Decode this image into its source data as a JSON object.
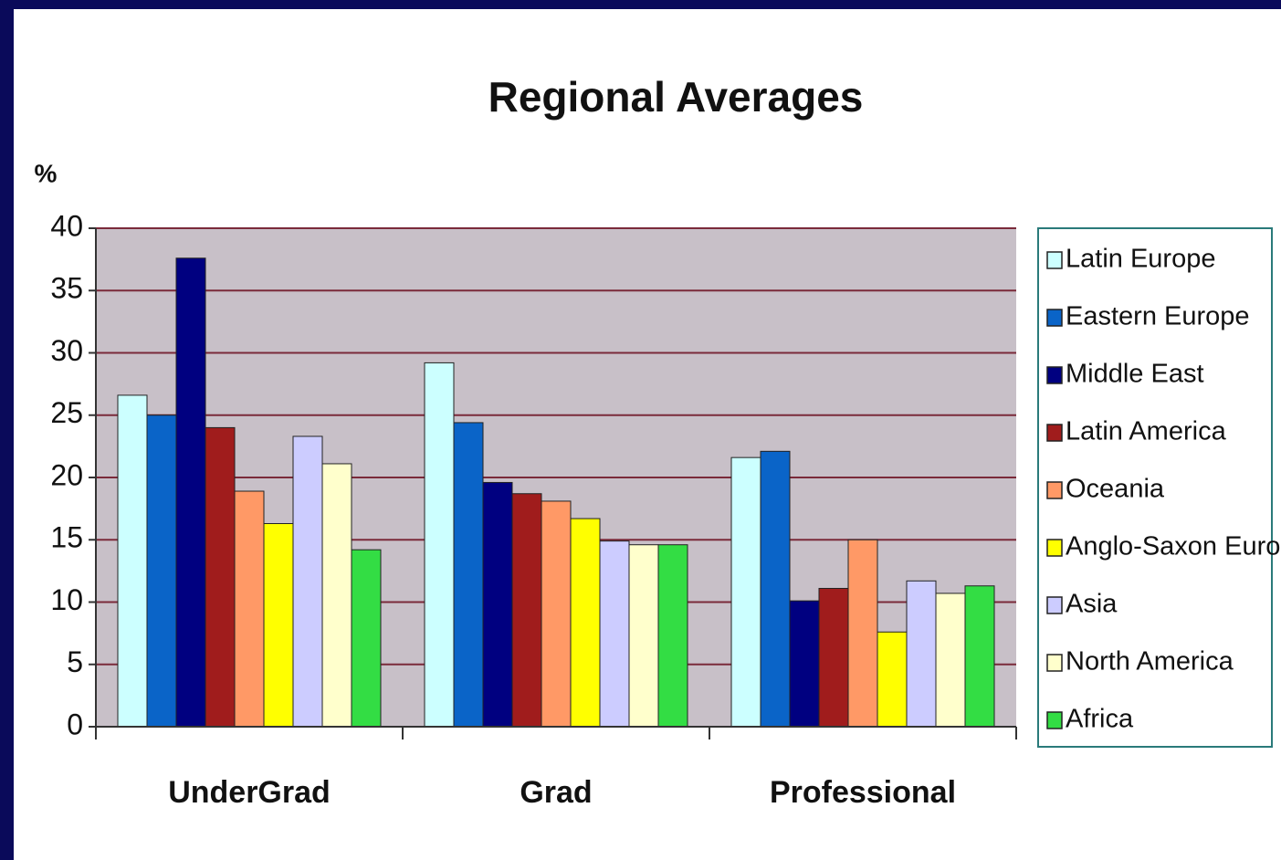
{
  "chart_data": {
    "type": "bar",
    "title": "Regional Averages",
    "y_label": "%",
    "categories": [
      "UnderGrad",
      "Grad",
      "Professional"
    ],
    "series": [
      {
        "name": "Latin Europe",
        "color": "#ccffff",
        "values": [
          26.6,
          29.2,
          21.6
        ]
      },
      {
        "name": "Eastern Europe",
        "color": "#0a64c8",
        "values": [
          25,
          24.4,
          22.1
        ]
      },
      {
        "name": "Middle East",
        "color": "#000080",
        "values": [
          37.6,
          19.6,
          10.1
        ]
      },
      {
        "name": "Latin America",
        "color": "#a01c1c",
        "values": [
          24,
          18.7,
          11.1
        ]
      },
      {
        "name": "Oceania",
        "color": "#ff9966",
        "values": [
          18.9,
          18.1,
          15
        ]
      },
      {
        "name": "Anglo-Saxon Europe",
        "color": "#ffff00",
        "values": [
          16.3,
          16.7,
          7.6
        ]
      },
      {
        "name": "Asia",
        "color": "#ccccff",
        "values": [
          23.3,
          14.9,
          11.7
        ]
      },
      {
        "name": "North America",
        "color": "#ffffcc",
        "values": [
          21.1,
          14.6,
          10.7
        ]
      },
      {
        "name": "Africa",
        "color": "#33dd44",
        "values": [
          14.2,
          14.6,
          11.3
        ]
      }
    ],
    "ylim": [
      0,
      40
    ],
    "yticks": [
      0,
      5,
      10,
      15,
      20,
      25,
      30,
      35,
      40
    ],
    "grid": true,
    "legend": "right"
  }
}
